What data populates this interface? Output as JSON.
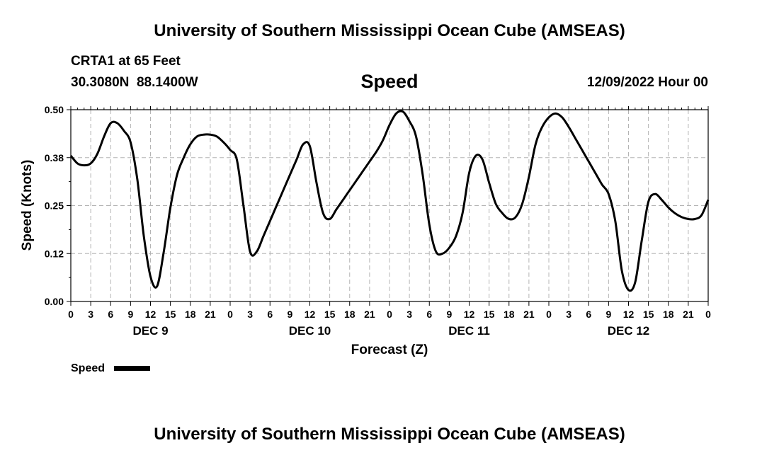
{
  "header": {
    "title": "University of Southern Mississippi Ocean Cube (AMSEAS)",
    "station": "CRTA1 at 65 Feet",
    "coords": "30.3080N  88.1400W",
    "datetime": "12/09/2022 Hour 00"
  },
  "footer": {
    "title": "University of Southern Mississippi Ocean Cube (AMSEAS)"
  },
  "colors": {
    "line": "#000000",
    "grid": "#b4b4b4",
    "background": "#ffffff"
  },
  "chart_data": {
    "type": "line",
    "title": "Speed",
    "xlabel": "Forecast (Z)",
    "ylabel": "Speed (Knots)",
    "xlim": [
      0,
      96
    ],
    "ylim": [
      0,
      0.5
    ],
    "yticks": [
      0.0,
      0.125,
      0.25,
      0.375,
      0.5
    ],
    "ytick_labels": [
      "0.00",
      "0.12",
      "0.25",
      "0.38",
      "0.50"
    ],
    "xticks": [
      0,
      3,
      6,
      9,
      12,
      15,
      18,
      21,
      24,
      27,
      30,
      33,
      36,
      39,
      42,
      45,
      48,
      51,
      54,
      57,
      60,
      63,
      66,
      69,
      72,
      75,
      78,
      81,
      84,
      87,
      90,
      93,
      96
    ],
    "xtick_labels": [
      "0",
      "3",
      "6",
      "9",
      "12",
      "15",
      "18",
      "21",
      "0",
      "3",
      "6",
      "9",
      "12",
      "15",
      "18",
      "21",
      "0",
      "3",
      "6",
      "9",
      "12",
      "15",
      "18",
      "21",
      "0",
      "3",
      "6",
      "9",
      "12",
      "15",
      "18",
      "21",
      "0"
    ],
    "day_labels": [
      {
        "label": "DEC 9",
        "hour": 12
      },
      {
        "label": "DEC 10",
        "hour": 36
      },
      {
        "label": "DEC 11",
        "hour": 60
      },
      {
        "label": "DEC 12",
        "hour": 84
      }
    ],
    "grid": true,
    "legend": {
      "label": "Speed",
      "position": "bottom-left"
    },
    "series": [
      {
        "name": "Speed",
        "x": [
          0,
          1,
          2,
          3,
          4,
          5,
          6,
          7,
          8,
          9,
          10,
          11,
          12,
          13,
          14,
          15,
          16,
          17,
          18,
          19,
          20,
          21,
          22,
          23,
          24,
          25,
          26,
          27,
          28,
          29,
          30,
          31,
          32,
          33,
          34,
          35,
          36,
          37,
          38,
          39,
          40,
          41,
          42,
          43,
          44,
          45,
          46,
          47,
          48,
          49,
          50,
          51,
          52,
          53,
          54,
          55,
          56,
          57,
          58,
          59,
          60,
          61,
          62,
          63,
          64,
          65,
          66,
          67,
          68,
          69,
          70,
          71,
          72,
          73,
          74,
          75,
          76,
          77,
          78,
          79,
          80,
          81,
          82,
          83,
          84,
          85,
          86,
          87,
          88,
          89,
          90,
          91,
          92,
          93,
          94,
          95,
          96
        ],
        "values": [
          0.38,
          0.36,
          0.355,
          0.36,
          0.385,
          0.43,
          0.465,
          0.465,
          0.445,
          0.415,
          0.32,
          0.17,
          0.065,
          0.04,
          0.13,
          0.245,
          0.33,
          0.375,
          0.41,
          0.43,
          0.435,
          0.435,
          0.43,
          0.415,
          0.395,
          0.37,
          0.25,
          0.13,
          0.13,
          0.17,
          0.21,
          0.25,
          0.29,
          0.33,
          0.37,
          0.41,
          0.405,
          0.31,
          0.23,
          0.215,
          0.24,
          0.265,
          0.29,
          0.315,
          0.34,
          0.365,
          0.39,
          0.42,
          0.46,
          0.49,
          0.495,
          0.47,
          0.43,
          0.33,
          0.2,
          0.13,
          0.125,
          0.14,
          0.17,
          0.23,
          0.335,
          0.38,
          0.37,
          0.31,
          0.255,
          0.23,
          0.215,
          0.22,
          0.255,
          0.325,
          0.41,
          0.455,
          0.48,
          0.49,
          0.48,
          0.455,
          0.425,
          0.395,
          0.365,
          0.335,
          0.305,
          0.28,
          0.21,
          0.08,
          0.03,
          0.05,
          0.16,
          0.26,
          0.28,
          0.265,
          0.245,
          0.23,
          0.22,
          0.215,
          0.215,
          0.225,
          0.265
        ]
      }
    ]
  }
}
